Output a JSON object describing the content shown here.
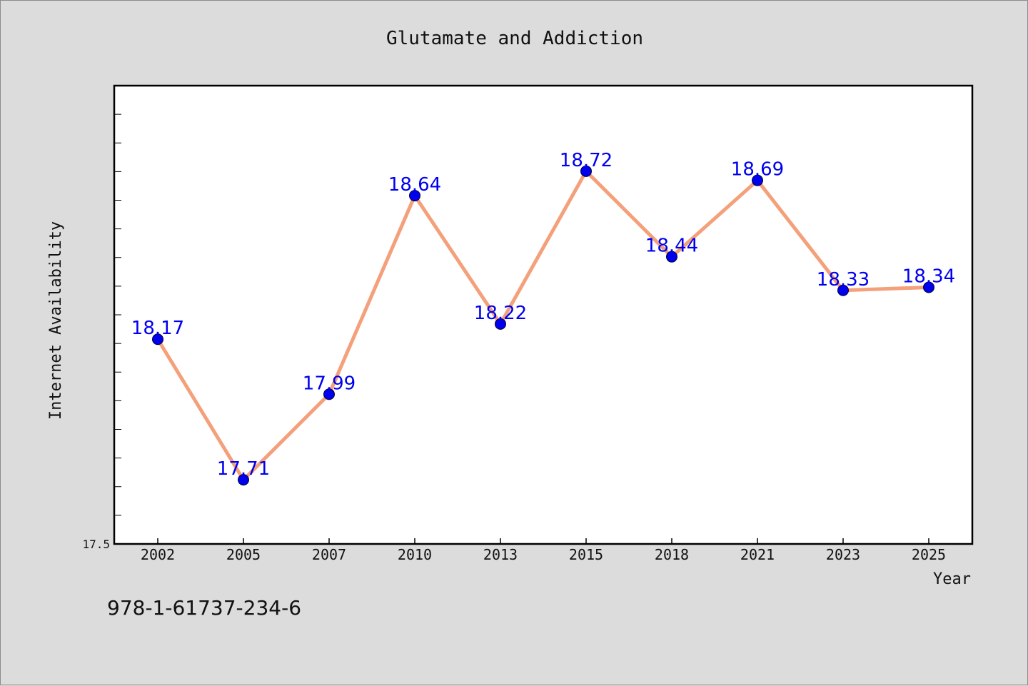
{
  "chart_data": {
    "type": "line",
    "title": "Glutamate and Addiction",
    "xlabel": "Year",
    "ylabel": "Internet Availability",
    "categories": [
      "2002",
      "2005",
      "2007",
      "2010",
      "2013",
      "2015",
      "2018",
      "2021",
      "2023",
      "2025"
    ],
    "series": [
      {
        "values": [
          18.17,
          17.71,
          17.99,
          18.64,
          18.22,
          18.72,
          18.44,
          18.69,
          18.33,
          18.34
        ],
        "labels": [
          "18.17",
          "17.71",
          "17.99",
          "18.64",
          "18.22",
          "18.72",
          "18.44",
          "18.69",
          "18.33",
          "18.34"
        ],
        "line_color": "#f4a07a",
        "marker_color": "#0000ee"
      }
    ],
    "ylim": [
      17.5,
      19.0
    ],
    "y_tick_label": "17.5",
    "y_minor_ticks": 15,
    "grid": false,
    "legend": "none"
  },
  "footer": {
    "isbn": "978-1-61737-234-6"
  }
}
